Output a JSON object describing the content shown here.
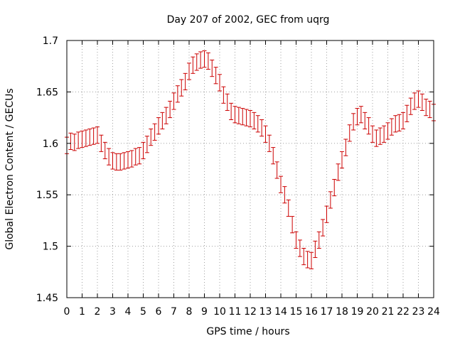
{
  "chart_data": {
    "type": "scatter",
    "title": "Day 207 of 2002, GEC from uqrg",
    "xlabel": "GPS time / hours",
    "ylabel": "Global Electron Content / GECUs",
    "xlim": [
      0,
      24
    ],
    "ylim": [
      1.45,
      1.7
    ],
    "xticks": [
      0,
      1,
      2,
      3,
      4,
      5,
      6,
      7,
      8,
      9,
      10,
      11,
      12,
      13,
      14,
      15,
      16,
      17,
      18,
      19,
      20,
      21,
      22,
      23,
      24
    ],
    "yticks": [
      1.45,
      1.5,
      1.55,
      1.6,
      1.65,
      1.7
    ],
    "ytick_labels": [
      "1.45",
      "1.5",
      "1.55",
      "1.6",
      "1.65",
      "1.7"
    ],
    "grid": true,
    "series_color": "#cc0000",
    "error": 0.008,
    "series": [
      {
        "name": "GEC",
        "x": [
          0,
          0.25,
          0.5,
          0.75,
          1,
          1.25,
          1.5,
          1.75,
          2,
          2.25,
          2.5,
          2.75,
          3,
          3.25,
          3.5,
          3.75,
          4,
          4.25,
          4.5,
          4.75,
          5,
          5.25,
          5.5,
          5.75,
          6,
          6.25,
          6.5,
          6.75,
          7,
          7.25,
          7.5,
          7.75,
          8,
          8.25,
          8.5,
          8.75,
          9,
          9.25,
          9.5,
          9.75,
          10,
          10.25,
          10.5,
          10.75,
          11,
          11.25,
          11.5,
          11.75,
          12,
          12.25,
          12.5,
          12.75,
          13,
          13.25,
          13.5,
          13.75,
          14,
          14.25,
          14.5,
          14.75,
          15,
          15.25,
          15.5,
          15.75,
          16,
          16.25,
          16.5,
          16.75,
          17,
          17.25,
          17.5,
          17.75,
          18,
          18.25,
          18.5,
          18.75,
          19,
          19.25,
          19.5,
          19.75,
          20,
          20.25,
          20.5,
          20.75,
          21,
          21.25,
          21.5,
          21.75,
          22,
          22.25,
          22.5,
          22.75,
          23,
          23.25,
          23.5,
          23.75,
          24
        ],
        "y": [
          1.598,
          1.602,
          1.601,
          1.603,
          1.604,
          1.605,
          1.606,
          1.607,
          1.608,
          1.6,
          1.593,
          1.587,
          1.583,
          1.582,
          1.582,
          1.583,
          1.584,
          1.585,
          1.587,
          1.588,
          1.593,
          1.599,
          1.606,
          1.611,
          1.617,
          1.622,
          1.627,
          1.633,
          1.641,
          1.648,
          1.654,
          1.66,
          1.67,
          1.676,
          1.679,
          1.681,
          1.682,
          1.68,
          1.673,
          1.666,
          1.659,
          1.647,
          1.64,
          1.631,
          1.628,
          1.627,
          1.626,
          1.625,
          1.624,
          1.622,
          1.619,
          1.615,
          1.609,
          1.6,
          1.588,
          1.574,
          1.56,
          1.55,
          1.537,
          1.521,
          1.506,
          1.498,
          1.49,
          1.487,
          1.486,
          1.497,
          1.506,
          1.518,
          1.531,
          1.545,
          1.557,
          1.572,
          1.584,
          1.596,
          1.61,
          1.621,
          1.626,
          1.628,
          1.622,
          1.617,
          1.609,
          1.605,
          1.607,
          1.609,
          1.612,
          1.616,
          1.619,
          1.62,
          1.622,
          1.629,
          1.636,
          1.641,
          1.643,
          1.64,
          1.635,
          1.633,
          1.63
        ]
      }
    ]
  }
}
